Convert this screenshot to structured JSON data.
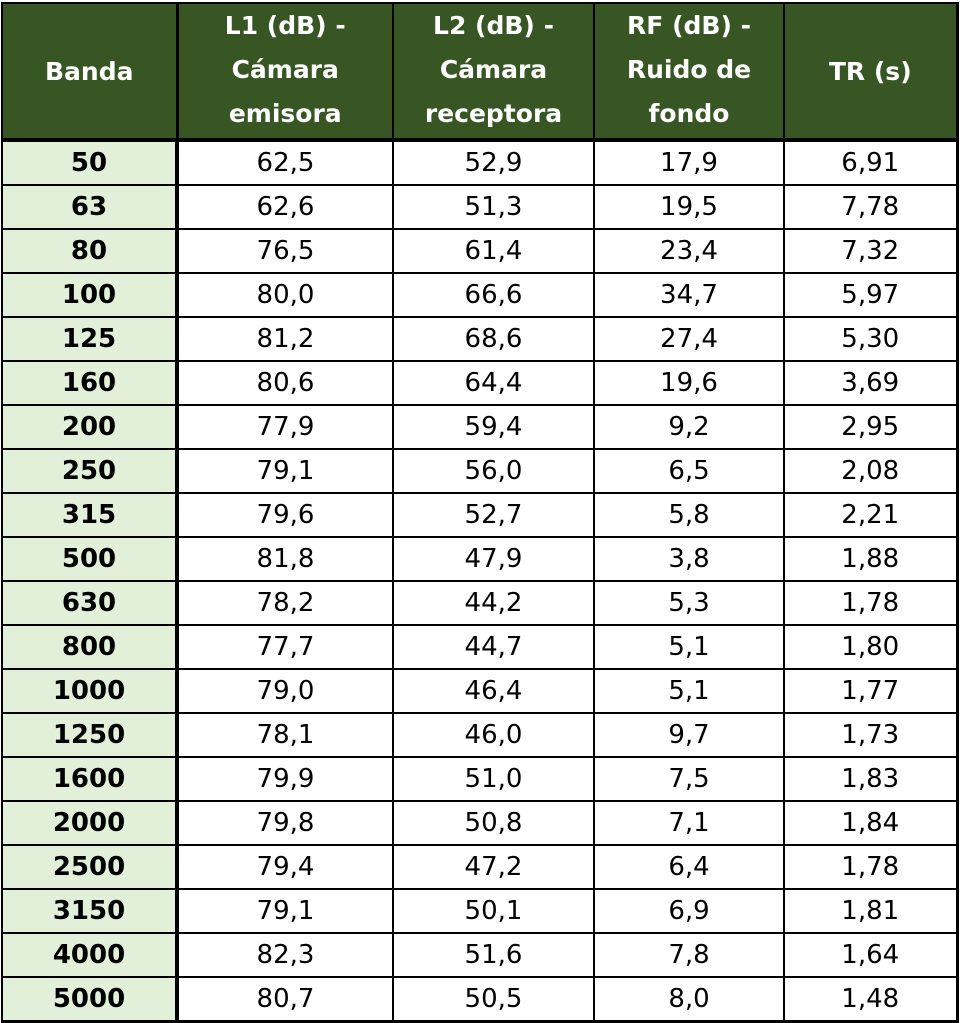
{
  "table": {
    "headers": [
      [
        "Banda"
      ],
      [
        "L1 (dB) -",
        "Cámara",
        "emisora"
      ],
      [
        "L2 (dB) -",
        "Cámara",
        "receptora"
      ],
      [
        "RF (dB) -",
        "Ruido de",
        "fondo"
      ],
      [
        "TR (s)"
      ]
    ],
    "rows": [
      [
        "50",
        "62,5",
        "52,9",
        "17,9",
        "6,91"
      ],
      [
        "63",
        "62,6",
        "51,3",
        "19,5",
        "7,78"
      ],
      [
        "80",
        "76,5",
        "61,4",
        "23,4",
        "7,32"
      ],
      [
        "100",
        "80,0",
        "66,6",
        "34,7",
        "5,97"
      ],
      [
        "125",
        "81,2",
        "68,6",
        "27,4",
        "5,30"
      ],
      [
        "160",
        "80,6",
        "64,4",
        "19,6",
        "3,69"
      ],
      [
        "200",
        "77,9",
        "59,4",
        "9,2",
        "2,95"
      ],
      [
        "250",
        "79,1",
        "56,0",
        "6,5",
        "2,08"
      ],
      [
        "315",
        "79,6",
        "52,7",
        "5,8",
        "2,21"
      ],
      [
        "500",
        "81,8",
        "47,9",
        "3,8",
        "1,88"
      ],
      [
        "630",
        "78,2",
        "44,2",
        "5,3",
        "1,78"
      ],
      [
        "800",
        "77,7",
        "44,7",
        "5,1",
        "1,80"
      ],
      [
        "1000",
        "79,0",
        "46,4",
        "5,1",
        "1,77"
      ],
      [
        "1250",
        "78,1",
        "46,0",
        "9,7",
        "1,73"
      ],
      [
        "1600",
        "79,9",
        "51,0",
        "7,5",
        "1,83"
      ],
      [
        "2000",
        "79,8",
        "50,8",
        "7,1",
        "1,84"
      ],
      [
        "2500",
        "79,4",
        "47,2",
        "6,4",
        "1,78"
      ],
      [
        "3150",
        "79,1",
        "50,1",
        "6,9",
        "1,81"
      ],
      [
        "4000",
        "82,3",
        "51,6",
        "7,8",
        "1,64"
      ],
      [
        "5000",
        "80,7",
        "50,5",
        "8,0",
        "1,48"
      ]
    ]
  },
  "colors": {
    "header_bg": "#385623",
    "header_text": "#ffffff",
    "band_col_bg": "#e2efd9",
    "border": "#000000"
  }
}
